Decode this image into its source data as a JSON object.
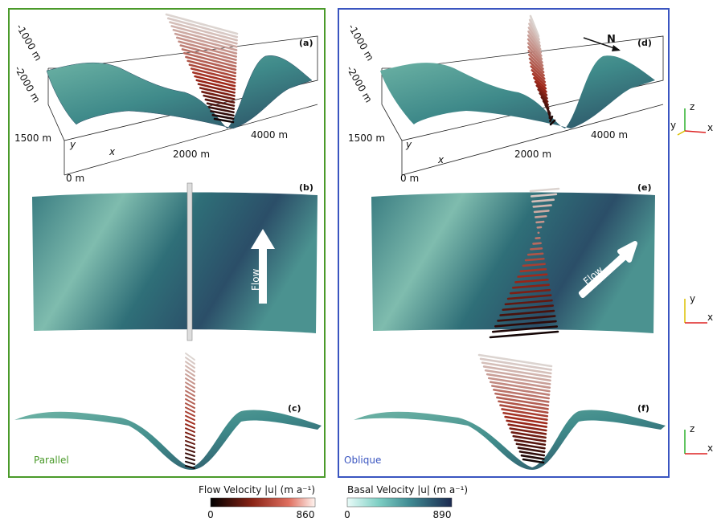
{
  "left_panel": {
    "name": "Parallel",
    "labels": [
      "(a)",
      "(b)",
      "(c)"
    ],
    "z_ticks": [
      "-1000 m",
      "-2000 m"
    ],
    "y_ticks": [
      "1500 m",
      "0 m"
    ],
    "x_ticks": [
      "2000 m",
      "4000 m"
    ],
    "x_axis": "x",
    "y_axis": "y",
    "flow": "Flow"
  },
  "right_panel": {
    "name": "Oblique",
    "labels": [
      "(d)",
      "(e)",
      "(f)"
    ],
    "z_ticks": [
      "-1000 m",
      "-2000 m"
    ],
    "y_ticks": [
      "1500 m",
      "0 m"
    ],
    "x_ticks": [
      "2000 m",
      "4000 m"
    ],
    "x_axis": "x",
    "y_axis": "y",
    "flow": "Flow",
    "north": "N"
  },
  "orientation_axes": [
    {
      "z": "z",
      "y": "y",
      "x": "x"
    },
    {
      "y": "y",
      "x": "x"
    },
    {
      "z": "z",
      "x": "x"
    }
  ],
  "colorbars": [
    {
      "title": "Flow Velocity |u| (m a⁻¹)",
      "min": "0",
      "max": "860"
    },
    {
      "title": "Basal Velocity |u| (m a⁻¹)",
      "min": "0",
      "max": "890"
    }
  ]
}
